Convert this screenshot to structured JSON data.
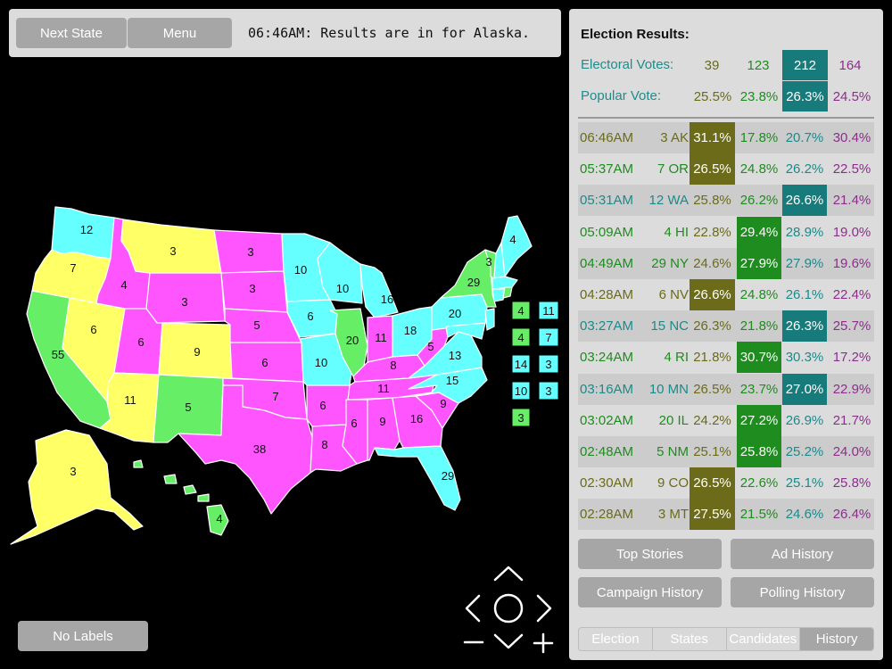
{
  "colors": {
    "candidate1": "#6b6b1a",
    "candidate2": "#1e8c1e",
    "candidate3": "#1c8a8a",
    "candidate4": "#8b2f8b",
    "highlight1": "#6b6b1a",
    "highlight2": "#1e8c1e",
    "highlight3": "#177b7b",
    "map_yellow": "#ffff66",
    "map_green": "#66ee66",
    "map_cyan": "#66ffff",
    "map_magenta": "#ff55ff"
  },
  "topbar": {
    "next_state_label": "Next State",
    "menu_label": "Menu",
    "status_text": "06:46AM: Results are in for Alaska."
  },
  "map_labels": {
    "wa": "12",
    "or": "7",
    "ca": "55",
    "nv": "6",
    "id": "4",
    "mt": "3",
    "wy": "3",
    "ut": "6",
    "co": "9",
    "az": "11",
    "nm": "5",
    "nd": "3",
    "sd": "3",
    "ne": "5",
    "ks": "6",
    "ok": "7",
    "tx": "38",
    "mn": "10",
    "ia": "6",
    "mo": "10",
    "ar": "6",
    "la": "8",
    "wi": "10",
    "il": "20",
    "mi": "16",
    "in": "11",
    "oh": "18",
    "ky": "8",
    "tn": "11",
    "ms": "6",
    "al": "9",
    "ga": "16",
    "fl": "29",
    "sc": "9",
    "nc": "15",
    "va": "13",
    "wv": "5",
    "pa": "20",
    "ny": "29",
    "vt": "3",
    "me": "4",
    "ak": "3",
    "hi": "4",
    "box_nh": "4",
    "box_ma": "11",
    "box_ri": "4",
    "box_ct": "7",
    "box_nj": "14",
    "box_de": "3",
    "box_md": "10",
    "box_dc": "3",
    "box_vt": "3"
  },
  "no_labels_label": "No Labels",
  "panel": {
    "title": "Election Results:",
    "electoral_label": "Electoral Votes:",
    "popular_label": "Popular Vote:",
    "electoral": [
      "39",
      "123",
      "212",
      "164"
    ],
    "popular": [
      "25.5%",
      "23.8%",
      "26.3%",
      "24.5%"
    ],
    "history": [
      {
        "time": "06:46AM",
        "state": "3 AK",
        "v": [
          "31.1%",
          "17.8%",
          "20.7%",
          "30.4%"
        ],
        "win": 0
      },
      {
        "time": "05:37AM",
        "state": "7 OR",
        "v": [
          "26.5%",
          "24.8%",
          "26.2%",
          "22.5%"
        ],
        "win": 0
      },
      {
        "time": "05:31AM",
        "state": "12 WA",
        "v": [
          "25.8%",
          "26.2%",
          "26.6%",
          "21.4%"
        ],
        "win": 2
      },
      {
        "time": "05:09AM",
        "state": "4 HI",
        "v": [
          "22.8%",
          "29.4%",
          "28.9%",
          "19.0%"
        ],
        "win": 1
      },
      {
        "time": "04:49AM",
        "state": "29 NY",
        "v": [
          "24.6%",
          "27.9%",
          "27.9%",
          "19.6%"
        ],
        "win": 1
      },
      {
        "time": "04:28AM",
        "state": "6 NV",
        "v": [
          "26.6%",
          "24.8%",
          "26.1%",
          "22.4%"
        ],
        "win": 0
      },
      {
        "time": "03:27AM",
        "state": "15 NC",
        "v": [
          "26.3%",
          "21.8%",
          "26.3%",
          "25.7%"
        ],
        "win": 2
      },
      {
        "time": "03:24AM",
        "state": "4 RI",
        "v": [
          "21.8%",
          "30.7%",
          "30.3%",
          "17.2%"
        ],
        "win": 1
      },
      {
        "time": "03:16AM",
        "state": "10 MN",
        "v": [
          "26.5%",
          "23.7%",
          "27.0%",
          "22.9%"
        ],
        "win": 2
      },
      {
        "time": "03:02AM",
        "state": "20 IL",
        "v": [
          "24.2%",
          "27.2%",
          "26.9%",
          "21.7%"
        ],
        "win": 1
      },
      {
        "time": "02:48AM",
        "state": "5 NM",
        "v": [
          "25.1%",
          "25.8%",
          "25.2%",
          "24.0%"
        ],
        "win": 1
      },
      {
        "time": "02:30AM",
        "state": "9 CO",
        "v": [
          "26.5%",
          "22.6%",
          "25.1%",
          "25.8%"
        ],
        "win": 0
      },
      {
        "time": "02:28AM",
        "state": "3 MT",
        "v": [
          "27.5%",
          "21.5%",
          "24.6%",
          "26.4%"
        ],
        "win": 0
      }
    ],
    "history_colors": [
      "c1",
      "c2",
      "c3",
      "c2",
      "c2",
      "c1",
      "c3",
      "c2",
      "c3",
      "c2",
      "c2",
      "c1",
      "c1"
    ],
    "buttons": {
      "top_stories": "Top Stories",
      "ad_history": "Ad History",
      "campaign_history": "Campaign History",
      "polling_history": "Polling History"
    },
    "tabs": [
      "Election",
      "States",
      "Candidates",
      "History"
    ],
    "active_tab": "History"
  }
}
